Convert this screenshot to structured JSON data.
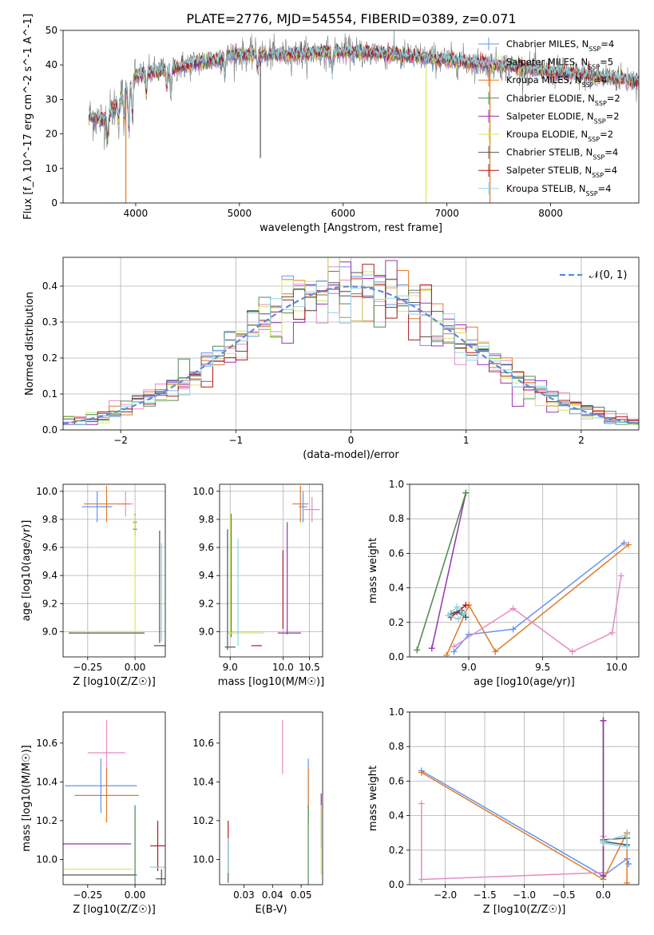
{
  "figure_title": "PLATE=2776, MJD=54554, FIBERID=0389, z=0.071",
  "model_colors": {
    "Chabrier MILES": "#6495ED",
    "Salpeter MILES": "#E88BC4",
    "Kroupa MILES": "#E07B28",
    "Chabrier ELODIE": "#4E8B56",
    "Salpeter ELODIE": "#9A32B0",
    "Kroupa ELODIE": "#D4E860",
    "Chabrier STELIB": "#555555",
    "Salpeter STELIB": "#B01818",
    "Kroupa STELIB": "#8FD3E2"
  },
  "spectrum_legend": [
    {
      "label": "Chabrier MILES, N",
      "sub": "SSP",
      "tail": "=4",
      "model": "Chabrier MILES"
    },
    {
      "label": "Salpeter MILES, N",
      "sub": "SSP",
      "tail": "=5",
      "model": "Salpeter MILES"
    },
    {
      "label": "Kroupa MILES, N",
      "sub": "SSP",
      "tail": "=4",
      "model": "Kroupa MILES"
    },
    {
      "label": "Chabrier ELODIE, N",
      "sub": "SSP",
      "tail": "=2",
      "model": "Chabrier ELODIE"
    },
    {
      "label": "Salpeter ELODIE, N",
      "sub": "SSP",
      "tail": "=2",
      "model": "Salpeter ELODIE"
    },
    {
      "label": "Kroupa ELODIE, N",
      "sub": "SSP",
      "tail": "=2",
      "model": "Kroupa ELODIE"
    },
    {
      "label": "Chabrier STELIB, N",
      "sub": "SSP",
      "tail": "=4",
      "model": "Chabrier STELIB"
    },
    {
      "label": "Salpeter STELIB, N",
      "sub": "SSP",
      "tail": "=4",
      "model": "Salpeter STELIB"
    },
    {
      "label": "Kroupa STELIB, N",
      "sub": "SSP",
      "tail": "=4",
      "model": "Kroupa STELIB"
    }
  ],
  "gaussian_legend": {
    "label": "𝒩(0, 1)",
    "color": "#5B8BD9"
  },
  "chart_data": [
    {
      "id": "spectrum",
      "type": "line",
      "xlabel": "wavelength [Angstrom, rest frame]",
      "ylabel": "Flux [f_λ 10^-17 erg cm^-2 s^-1 A^-1]",
      "xlim": [
        3300,
        8850
      ],
      "ylim": [
        0,
        50
      ],
      "xticks": [
        4000,
        5000,
        6000,
        7000,
        8000
      ],
      "yticks": [
        0,
        10,
        20,
        30,
        40,
        50
      ],
      "grid": false,
      "legend_loc": "upper right",
      "data_range_x": [
        3550,
        8850
      ],
      "absorption_features": [
        {
          "x": 3730,
          "depth": 6
        },
        {
          "x": 3835,
          "depth": 5
        },
        {
          "x": 3890,
          "depth": 8
        },
        {
          "x": 3933,
          "depth": 12
        },
        {
          "x": 3968,
          "depth": 10
        },
        {
          "x": 4102,
          "depth": 6
        },
        {
          "x": 4300,
          "depth": 5
        },
        {
          "x": 4340,
          "depth": 8
        },
        {
          "x": 4861,
          "depth": 5
        },
        {
          "x": 5175,
          "depth": 4
        },
        {
          "x": 5270,
          "depth": 2
        },
        {
          "x": 5893,
          "depth": 6
        },
        {
          "x": 6563,
          "depth": 2
        }
      ],
      "masked_spikes": [
        {
          "x": 3905,
          "y": 0,
          "series": "Kroupa MILES"
        },
        {
          "x": 5202,
          "y": 13,
          "series": "Chabrier STELIB"
        },
        {
          "x": 6800,
          "y": 0,
          "series": "Kroupa ELODIE"
        },
        {
          "x": 7415,
          "y": 0,
          "series": "Kroupa MILES"
        }
      ],
      "continuum": [
        {
          "x": 3550,
          "y": 25
        },
        {
          "x": 3700,
          "y": 24
        },
        {
          "x": 3850,
          "y": 30
        },
        {
          "x": 4000,
          "y": 37
        },
        {
          "x": 4200,
          "y": 38
        },
        {
          "x": 4500,
          "y": 40
        },
        {
          "x": 5000,
          "y": 43
        },
        {
          "x": 5500,
          "y": 43
        },
        {
          "x": 6000,
          "y": 44
        },
        {
          "x": 6500,
          "y": 43
        },
        {
          "x": 7000,
          "y": 41.5
        },
        {
          "x": 7500,
          "y": 40
        },
        {
          "x": 8000,
          "y": 38
        },
        {
          "x": 8500,
          "y": 36.5
        },
        {
          "x": 8850,
          "y": 35.5
        }
      ]
    },
    {
      "id": "residuals",
      "type": "histogram",
      "xlabel": "(data-model)/error",
      "ylabel": "Normed distribution",
      "xlim": [
        -2.5,
        2.5
      ],
      "ylim": [
        0,
        0.48
      ],
      "xticks": [
        -2,
        -1,
        0,
        1,
        2
      ],
      "yticks": [
        0.0,
        0.1,
        0.2,
        0.3,
        0.4
      ],
      "grid": true,
      "legend_loc": "upper right",
      "bin_edges_start": -2.5,
      "bin_width": 0.1
    },
    {
      "id": "age_vs_Z",
      "type": "errorbar",
      "xlabel": "Z [log10(Z/Z☉)]",
      "ylabel": "age [log10(age/yr)]",
      "xlim": [
        -0.38,
        0.16
      ],
      "ylim": [
        8.82,
        10.05
      ],
      "xticks": [
        -0.25,
        0.0
      ],
      "yticks": [
        9.0,
        9.2,
        9.4,
        9.6,
        9.8,
        10.0
      ],
      "grid": true,
      "points": [
        {
          "model": "Chabrier MILES",
          "x": -0.2,
          "xerr": 0.08,
          "y": 9.89,
          "yerr": 0.11
        },
        {
          "model": "Salpeter MILES",
          "x": -0.05,
          "xerr": 0.04,
          "y": 9.91,
          "yerr": 0.09
        },
        {
          "model": "Kroupa MILES",
          "x": -0.15,
          "xerr": 0.12,
          "y": 9.91,
          "yerr": 0.13
        },
        {
          "model": "Chabrier ELODIE",
          "x": 0.0,
          "xerr": 0.01,
          "y": 9.78,
          "yerr": 0.06
        },
        {
          "model": "Salpeter ELODIE",
          "x": 0.0,
          "xerr": 0.01,
          "y": 9.73,
          "yerr": 0.05
        },
        {
          "model": "Kroupa ELODIE",
          "x": 0.0,
          "xerr": 0.01,
          "y": 9.4,
          "yerr": 0.43
        },
        {
          "model": "Chabrier STELIB",
          "x": -0.15,
          "xerr": 0.2,
          "y": 8.99,
          "yerr": 0.0
        },
        {
          "model": "Kroupa ELODIE",
          "x": -0.15,
          "xerr": 0.2,
          "y": 9.0,
          "yerr": 0.0
        },
        {
          "model": "Chabrier STELIB",
          "x": 0.13,
          "xerr": 0.0,
          "y": 9.32,
          "yerr": 0.4
        },
        {
          "model": "Kroupa STELIB",
          "x": 0.14,
          "xerr": 0.0,
          "y": 9.28,
          "yerr": 0.35
        },
        {
          "model": "Kroupa STELIB",
          "x": 0.13,
          "xerr": 0.03,
          "y": 8.9,
          "yerr": 0.0
        },
        {
          "model": "Chabrier STELIB",
          "x": 0.13,
          "xerr": 0.03,
          "y": 8.9,
          "yerr": 0.0
        }
      ]
    },
    {
      "id": "age_vs_mass",
      "type": "errorbar",
      "xlabel": "mass [log10(M/M☉)]",
      "ylabel": "",
      "xlim": [
        8.8,
        10.75
      ],
      "ylim": [
        8.82,
        10.05
      ],
      "xticks": [
        9.0,
        10.0,
        10.5
      ],
      "yticks": [
        9.0,
        9.2,
        9.4,
        9.6,
        9.8,
        10.0
      ],
      "grid": true,
      "points": [
        {
          "model": "Chabrier MILES",
          "x": 10.38,
          "xerr": 0.08,
          "y": 9.89,
          "yerr": 0.11
        },
        {
          "model": "Salpeter MILES",
          "x": 10.55,
          "xerr": 0.15,
          "y": 9.87,
          "yerr": 0.09
        },
        {
          "model": "Kroupa MILES",
          "x": 10.33,
          "xerr": 0.15,
          "y": 9.91,
          "yerr": 0.13
        },
        {
          "model": "Chabrier ELODIE",
          "x": 9.02,
          "xerr": 0.0,
          "y": 9.4,
          "yerr": 0.44
        },
        {
          "model": "Salpeter ELODIE",
          "x": 10.08,
          "xerr": 0.0,
          "y": 9.38,
          "yerr": 0.4
        },
        {
          "model": "Salpeter ELODIE",
          "x": 10.12,
          "xerr": 0.22,
          "y": 8.99,
          "yerr": 0.0
        },
        {
          "model": "Kroupa ELODIE",
          "x": 9.0,
          "xerr": 0.0,
          "y": 9.4,
          "yerr": 0.43
        },
        {
          "model": "Kroupa ELODIE",
          "x": 9.3,
          "xerr": 0.35,
          "y": 8.99,
          "yerr": 0.0
        },
        {
          "model": "Chabrier STELIB",
          "x": 8.95,
          "xerr": 0.0,
          "y": 9.3,
          "yerr": 0.43
        },
        {
          "model": "Salpeter STELIB",
          "x": 10.0,
          "xerr": 0.0,
          "y": 9.3,
          "yerr": 0.28
        },
        {
          "model": "Salpeter STELIB",
          "x": 9.5,
          "xerr": 0.1,
          "y": 8.9,
          "yerr": 0.0
        },
        {
          "model": "Kroupa STELIB",
          "x": 9.15,
          "xerr": 0.0,
          "y": 9.28,
          "yerr": 0.38
        },
        {
          "model": "Chabrier STELIB",
          "x": 9.0,
          "xerr": 0.1,
          "y": 8.89,
          "yerr": 0.0
        }
      ]
    },
    {
      "id": "weight_vs_age",
      "type": "line",
      "xlabel": "age [log10(age/yr)]",
      "ylabel": "mass weight",
      "xlim": [
        8.6,
        10.15
      ],
      "ylim": [
        0,
        1
      ],
      "xticks": [
        9.0,
        9.5,
        10.0
      ],
      "yticks": [
        0.0,
        0.2,
        0.4,
        0.6,
        0.8,
        1.0
      ],
      "grid": true,
      "series": [
        {
          "model": "Kroupa ELODIE",
          "x": [
            8.65,
            8.98
          ],
          "y": [
            0.04,
            0.95
          ]
        },
        {
          "model": "Salpeter ELODIE",
          "x": [
            8.75,
            8.98
          ],
          "y": [
            0.05,
            0.95
          ]
        },
        {
          "model": "Chabrier ELODIE",
          "x": [
            8.65,
            8.98
          ],
          "y": [
            0.04,
            0.95
          ]
        },
        {
          "model": "Chabrier MILES",
          "x": [
            8.9,
            9.0,
            9.3,
            10.05
          ],
          "y": [
            0.03,
            0.13,
            0.16,
            0.66
          ]
        },
        {
          "model": "Kroupa MILES",
          "x": [
            8.85,
            9.0,
            9.18,
            10.08
          ],
          "y": [
            0.01,
            0.3,
            0.03,
            0.65
          ]
        },
        {
          "model": "Salpeter MILES",
          "x": [
            8.9,
            9.3,
            9.7,
            9.97,
            10.03
          ],
          "y": [
            0.06,
            0.28,
            0.03,
            0.14,
            0.47
          ]
        },
        {
          "model": "Salpeter STELIB",
          "x": [
            8.88,
            8.98
          ],
          "y": [
            0.23,
            0.3
          ]
        },
        {
          "model": "Chabrier STELIB",
          "x": [
            8.88,
            8.95,
            8.98,
            8.92
          ],
          "y": [
            0.25,
            0.27,
            0.23,
            0.26
          ]
        },
        {
          "model": "Kroupa STELIB",
          "x": [
            8.86,
            8.92,
            8.97,
            8.93,
            8.86
          ],
          "y": [
            0.24,
            0.29,
            0.25,
            0.22,
            0.24
          ]
        }
      ]
    },
    {
      "id": "mass_vs_Z",
      "type": "errorbar",
      "xlabel": "Z [log10(Z/Z☉)]",
      "ylabel": "mass [log10(M/M☉)]",
      "xlim": [
        -0.38,
        0.16
      ],
      "ylim": [
        9.87,
        10.76
      ],
      "xticks": [
        -0.25,
        0.0
      ],
      "yticks": [
        10.0,
        10.2,
        10.4,
        10.6
      ],
      "grid": false,
      "points": [
        {
          "model": "Chabrier MILES",
          "x": -0.18,
          "xerr": 0.19,
          "y": 10.38,
          "yerr": 0.14
        },
        {
          "model": "Salpeter MILES",
          "x": -0.15,
          "xerr": 0.1,
          "y": 10.55,
          "yerr": 0.17
        },
        {
          "model": "Kroupa MILES",
          "x": -0.15,
          "xerr": 0.17,
          "y": 10.33,
          "yerr": 0.14
        },
        {
          "model": "Salpeter ELODIE",
          "x": -0.22,
          "xerr": 0.2,
          "y": 10.08,
          "yerr": 0.0
        },
        {
          "model": "Kroupa ELODIE",
          "x": -0.22,
          "xerr": 0.21,
          "y": 9.95,
          "yerr": 0.0
        },
        {
          "model": "Kroupa ELODIE",
          "x": 0.0,
          "xerr": 0.0,
          "y": 10.1,
          "yerr": 0.18
        },
        {
          "model": "Chabrier STELIB",
          "x": -0.2,
          "xerr": 0.21,
          "y": 9.92,
          "yerr": 0.0
        },
        {
          "model": "Salpeter STELIB",
          "x": 0.12,
          "xerr": 0.04,
          "y": 10.07,
          "yerr": 0.13
        },
        {
          "model": "Kroupa STELIB",
          "x": 0.12,
          "xerr": 0.04,
          "y": 9.96,
          "yerr": 0.0
        },
        {
          "model": "Chabrier STELIB",
          "x": 0.14,
          "xerr": 0.03,
          "y": 9.9,
          "yerr": 0.05
        },
        {
          "model": "Chabrier ELODIE",
          "x": 0.0,
          "xerr": 0.0,
          "y": 10.05,
          "yerr": 0.23
        }
      ]
    },
    {
      "id": "mass_vs_EBV",
      "type": "errorbar",
      "xlabel": "E(B-V)",
      "ylabel": "",
      "xlim": [
        0.0215,
        0.0575
      ],
      "ylim": [
        9.87,
        10.76
      ],
      "xticks": [
        0.03,
        0.04,
        0.05
      ],
      "yticks": [
        10.0,
        10.2,
        10.4,
        10.6
      ],
      "grid": false,
      "points": [
        {
          "model": "Salpeter MILES",
          "x": 0.0435,
          "xerr": 0.0,
          "y": 10.58,
          "yerr": 0.14
        },
        {
          "model": "Chabrier MILES",
          "x": 0.0525,
          "xerr": 0.0,
          "y": 10.38,
          "yerr": 0.14
        },
        {
          "model": "Kroupa MILES",
          "x": 0.0525,
          "xerr": 0.0,
          "y": 10.33,
          "yerr": 0.14
        },
        {
          "model": "Chabrier ELODIE",
          "x": 0.0525,
          "xerr": 0.0,
          "y": 10.05,
          "yerr": 0.23
        },
        {
          "model": "Salpeter ELODIE",
          "x": 0.057,
          "xerr": 0.0,
          "y": 10.2,
          "yerr": 0.14
        },
        {
          "model": "Kroupa ELODIE",
          "x": 0.057,
          "xerr": 0.0,
          "y": 10.1,
          "yerr": 0.18
        },
        {
          "model": "Salpeter STELIB",
          "x": 0.0245,
          "xerr": 0.0,
          "y": 10.07,
          "yerr": 0.13
        },
        {
          "model": "Chabrier STELIB",
          "x": 0.0245,
          "xerr": 0.0,
          "y": 9.98,
          "yerr": 0.1
        },
        {
          "model": "Kroupa STELIB",
          "x": 0.0245,
          "xerr": 0.0,
          "y": 10.02,
          "yerr": 0.09
        }
      ]
    },
    {
      "id": "weight_vs_Z",
      "type": "line",
      "xlabel": "Z [log10(Z/Z☉)]",
      "ylabel": "mass weight",
      "xlim": [
        -2.45,
        0.45
      ],
      "ylim": [
        0,
        1
      ],
      "xticks": [
        -2.0,
        -1.5,
        -1.0,
        -0.5,
        0.0
      ],
      "yticks": [
        0.0,
        0.2,
        0.4,
        0.6,
        0.8,
        1.0
      ],
      "grid": true,
      "series": [
        {
          "model": "Chabrier MILES",
          "x": [
            -2.3,
            0.0,
            0.3,
            0.32
          ],
          "y": [
            0.66,
            0.05,
            0.15,
            0.12
          ]
        },
        {
          "model": "Kroupa MILES",
          "x": [
            -2.3,
            0.0,
            0.3,
            0.3
          ],
          "y": [
            0.65,
            0.03,
            0.3,
            0.01
          ]
        },
        {
          "model": "Salpeter MILES",
          "x": [
            -2.3,
            -2.3,
            0.0,
            0.0
          ],
          "y": [
            0.47,
            0.03,
            0.07,
            0.28
          ]
        },
        {
          "model": "Kroupa ELODIE",
          "x": [
            0.0,
            0.0
          ],
          "y": [
            0.04,
            0.95
          ]
        },
        {
          "model": "Chabrier ELODIE",
          "x": [
            0.0,
            0.0
          ],
          "y": [
            0.05,
            0.95
          ]
        },
        {
          "model": "Salpeter ELODIE",
          "x": [
            0.0,
            0.0
          ],
          "y": [
            0.05,
            0.95
          ]
        },
        {
          "model": "Chabrier STELIB",
          "x": [
            0.0,
            0.3,
            0.3,
            0.0
          ],
          "y": [
            0.25,
            0.23,
            0.27,
            0.26
          ]
        },
        {
          "model": "Kroupa STELIB",
          "x": [
            0.0,
            0.3,
            0.3,
            0.0
          ],
          "y": [
            0.24,
            0.22,
            0.29,
            0.25
          ]
        }
      ]
    }
  ]
}
